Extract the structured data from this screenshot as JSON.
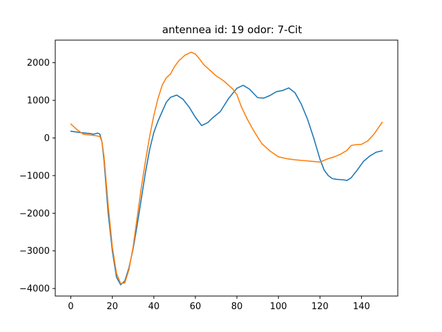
{
  "chart_data": {
    "type": "line",
    "title": "antennea id: 19    odor: 7-Cit",
    "xlabel": "",
    "ylabel": "",
    "xlim": [
      -7.5,
      157.5
    ],
    "ylim": [
      -4200,
      2600
    ],
    "xticks": [
      0,
      20,
      40,
      60,
      80,
      100,
      120,
      140
    ],
    "yticks": [
      -4000,
      -3000,
      -2000,
      -1000,
      0,
      1000,
      2000
    ],
    "grid": false,
    "legend": "none",
    "series": [
      {
        "color": "#1f77b4",
        "x": [
          0,
          5,
          9,
          11,
          13,
          14,
          15,
          16,
          18,
          20,
          22,
          24,
          26,
          28,
          30,
          32,
          34,
          36,
          38,
          40,
          42,
          44,
          46,
          48,
          51,
          54,
          57,
          60,
          63,
          66,
          68,
          72,
          76,
          80,
          83,
          86,
          90,
          93,
          96,
          99,
          102,
          105,
          108,
          111,
          114,
          117,
          120,
          122,
          124,
          126,
          128,
          131,
          133,
          135,
          138,
          141,
          144,
          147,
          150
        ],
        "y": [
          180,
          140,
          120,
          100,
          130,
          100,
          -100,
          -600,
          -2000,
          -3000,
          -3700,
          -3900,
          -3800,
          -3450,
          -2950,
          -2300,
          -1600,
          -900,
          -300,
          150,
          450,
          700,
          950,
          1080,
          1140,
          1030,
          820,
          550,
          330,
          410,
          520,
          700,
          1050,
          1320,
          1400,
          1300,
          1070,
          1060,
          1130,
          1230,
          1260,
          1330,
          1200,
          900,
          500,
          0,
          -560,
          -850,
          -1000,
          -1080,
          -1100,
          -1110,
          -1130,
          -1060,
          -850,
          -620,
          -480,
          -380,
          -340
        ]
      },
      {
        "color": "#ff7f0e",
        "x": [
          0,
          3,
          6,
          9,
          12,
          14,
          15,
          16,
          18,
          20,
          22,
          24,
          26,
          28,
          30,
          32,
          34,
          36,
          38,
          40,
          42,
          44,
          46,
          48,
          50,
          52,
          55,
          58,
          60,
          62,
          64,
          66,
          68,
          70,
          72,
          74,
          76,
          78,
          80,
          82,
          85,
          88,
          92,
          96,
          100,
          104,
          108,
          112,
          116,
          120,
          124,
          127,
          130,
          133,
          135,
          137,
          140,
          143,
          146,
          150
        ],
        "y": [
          370,
          220,
          100,
          80,
          60,
          40,
          -100,
          -500,
          -1800,
          -2900,
          -3600,
          -3870,
          -3850,
          -3500,
          -2900,
          -2100,
          -1300,
          -600,
          50,
          600,
          1050,
          1400,
          1600,
          1700,
          1900,
          2050,
          2200,
          2280,
          2230,
          2100,
          1950,
          1850,
          1750,
          1650,
          1580,
          1500,
          1400,
          1300,
          1150,
          850,
          500,
          200,
          -150,
          -350,
          -500,
          -550,
          -580,
          -600,
          -620,
          -640,
          -550,
          -500,
          -430,
          -330,
          -200,
          -180,
          -170,
          -80,
          100,
          420
        ]
      }
    ]
  }
}
